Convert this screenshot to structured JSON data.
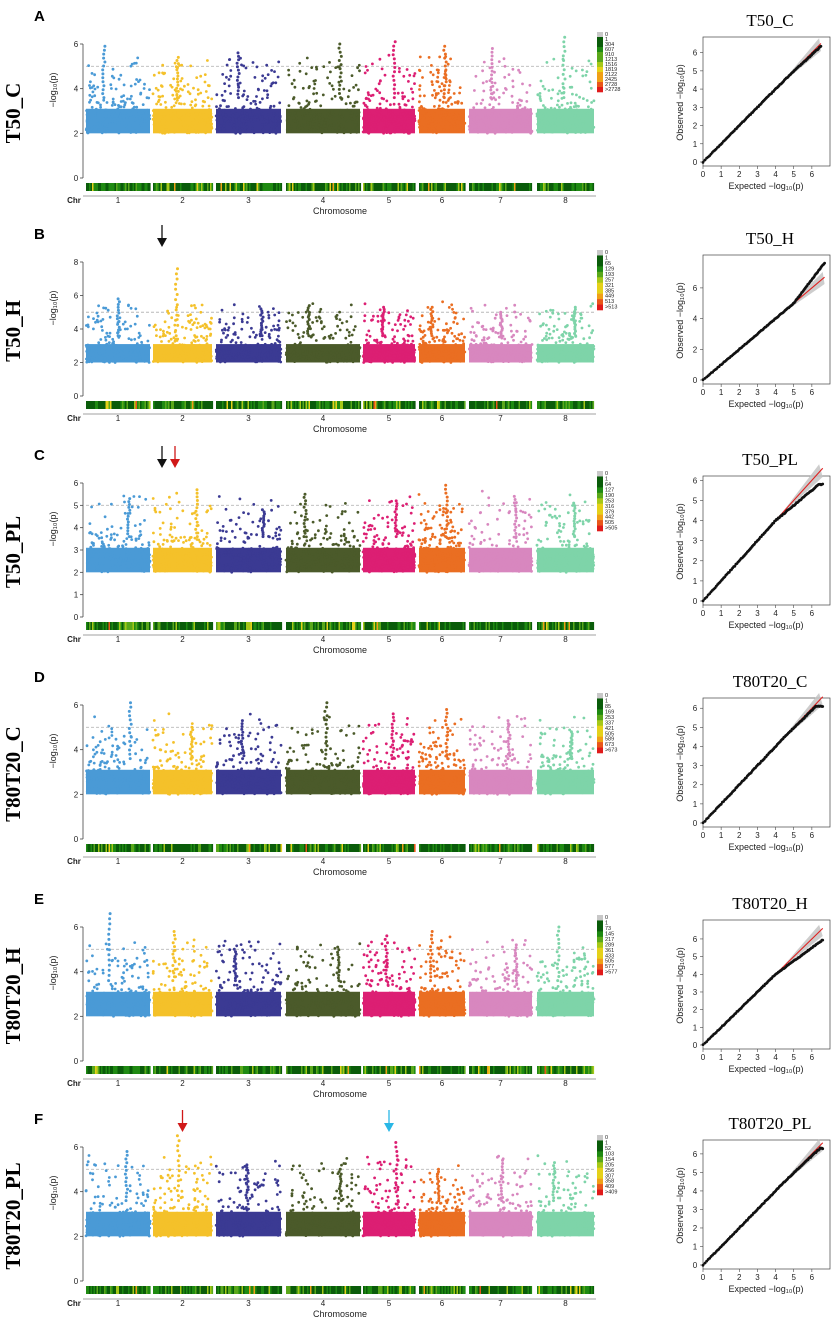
{
  "chart_data": {
    "type": "scatter",
    "figure": "GWAS Manhattan and QQ plots",
    "colors": {
      "chromosomes": [
        "#4a9ad6",
        "#f4c12a",
        "#3b3a93",
        "#4b5a2a",
        "#dc1f73",
        "#ea6e22",
        "#d887bf",
        "#7ed4a9"
      ],
      "threshold": "#b8b8b8",
      "qq_expected_line": "#e02020",
      "qq_confidence_band": "#c4c4c4",
      "density_ramp": [
        "#0a5c0a",
        "#1f8a12",
        "#5aa81a",
        "#a6c818",
        "#e5d11a",
        "#f0a016",
        "#e9561a",
        "#e01b1b"
      ],
      "arrow_black": "#111111",
      "arrow_red": "#d01818",
      "arrow_cyan": "#29b7e6"
    },
    "chromosome_axis": {
      "label": "Chr",
      "ticks": [
        "1",
        "2",
        "3",
        "4",
        "5",
        "6",
        "7",
        "8"
      ]
    },
    "manhattan_xlabel": "Chromosome",
    "manhattan_ylabel": "−log₁₀(p)",
    "qq_xlabel": "Expected −log₁₀(p)",
    "qq_ylabel": "Observed −log₁₀(p)",
    "suggestive_threshold": 5,
    "panels": [
      {
        "letter": "A",
        "trait": "T50_C",
        "ylim": [
          0,
          6
        ],
        "yticks": [
          0,
          2,
          4,
          6
        ],
        "peaks": [
          5.9,
          5.4,
          5.6,
          6.0,
          6.1,
          5.9,
          5.8,
          6.3
        ],
        "density_legend": [
          "0",
          "1",
          "304",
          "607",
          "910",
          "1213",
          "1516",
          "1819",
          "2122",
          "2425",
          "2728",
          ">2728"
        ],
        "qq": {
          "xmax": 6.5,
          "ymax": 6.4,
          "yticks": [
            0,
            1,
            2,
            3,
            4,
            5,
            6
          ],
          "deviation": "slight_upper_tail"
        },
        "arrows": []
      },
      {
        "letter": "B",
        "trait": "T50_H",
        "ylim": [
          0,
          8
        ],
        "yticks": [
          0,
          2,
          4,
          6,
          8
        ],
        "peaks": [
          5.8,
          7.6,
          5.2,
          5.4,
          5.3,
          5.3,
          5.0,
          5.3
        ],
        "density_legend": [
          "0",
          "1",
          "65",
          "129",
          "193",
          "257",
          "321",
          "385",
          "449",
          "513",
          ">513"
        ],
        "qq": {
          "xmax": 6.7,
          "ymax": 7.6,
          "yticks": [
            0,
            2,
            4,
            6
          ],
          "deviation": "strong_upper_tail"
        },
        "arrows": [
          {
            "chromosome": 2,
            "color": "black"
          }
        ]
      },
      {
        "letter": "C",
        "trait": "T50_PL",
        "ylim": [
          0,
          6
        ],
        "yticks": [
          0,
          1,
          2,
          3,
          4,
          5,
          6
        ],
        "peaks": [
          5.3,
          5.7,
          4.8,
          5.5,
          5.2,
          5.9,
          5.4,
          5.1
        ],
        "density_legend": [
          "0",
          "1",
          "64",
          "127",
          "190",
          "253",
          "316",
          "379",
          "442",
          "505",
          ">505"
        ],
        "qq": {
          "xmax": 6.6,
          "ymax": 5.8,
          "yticks": [
            0,
            1,
            2,
            3,
            4,
            5,
            6
          ],
          "deviation": "deflation_upper"
        },
        "arrows": [
          {
            "chromosome": 2,
            "color": "black"
          },
          {
            "chromosome": 2,
            "color": "red"
          }
        ]
      },
      {
        "letter": "D",
        "trait": "T80T20_C",
        "ylim": [
          0,
          6
        ],
        "yticks": [
          0,
          2,
          4,
          6
        ],
        "peaks": [
          6.1,
          5.0,
          5.3,
          6.1,
          5.6,
          5.8,
          5.3,
          4.8
        ],
        "density_legend": [
          "0",
          "1",
          "85",
          "169",
          "253",
          "337",
          "421",
          "505",
          "589",
          "673",
          ">673"
        ],
        "qq": {
          "xmax": 6.6,
          "ymax": 6.1,
          "yticks": [
            0,
            1,
            2,
            3,
            4,
            5,
            6
          ],
          "deviation": "slight_upper_tail"
        },
        "arrows": []
      },
      {
        "letter": "E",
        "trait": "T80T20_H",
        "ylim": [
          0,
          6
        ],
        "yticks": [
          0,
          2,
          4,
          6
        ],
        "peaks": [
          6.6,
          5.8,
          5.0,
          5.1,
          5.6,
          5.8,
          5.2,
          6.0
        ],
        "density_legend": [
          "0",
          "1",
          "73",
          "145",
          "217",
          "289",
          "361",
          "433",
          "505",
          "577",
          ">577"
        ],
        "qq": {
          "xmax": 6.6,
          "ymax": 6.6,
          "yticks": [
            0,
            1,
            2,
            3,
            4,
            5,
            6
          ],
          "deviation": "deflation_upper"
        },
        "arrows": []
      },
      {
        "letter": "F",
        "trait": "T80T20_PL",
        "ylim": [
          0,
          6
        ],
        "yticks": [
          0,
          2,
          4,
          6
        ],
        "peaks": [
          5.8,
          6.5,
          5.2,
          5.0,
          6.2,
          5.0,
          5.4,
          5.3
        ],
        "density_legend": [
          "0",
          "1",
          "52",
          "103",
          "154",
          "205",
          "256",
          "307",
          "358",
          "409",
          ">409"
        ],
        "qq": {
          "xmax": 6.6,
          "ymax": 6.3,
          "yticks": [
            0,
            1,
            2,
            3,
            4,
            5,
            6
          ],
          "deviation": "slight_upper_tail"
        },
        "arrows": [
          {
            "chromosome": 2,
            "color": "red"
          },
          {
            "chromosome": 5,
            "color": "cyan"
          }
        ]
      }
    ]
  }
}
